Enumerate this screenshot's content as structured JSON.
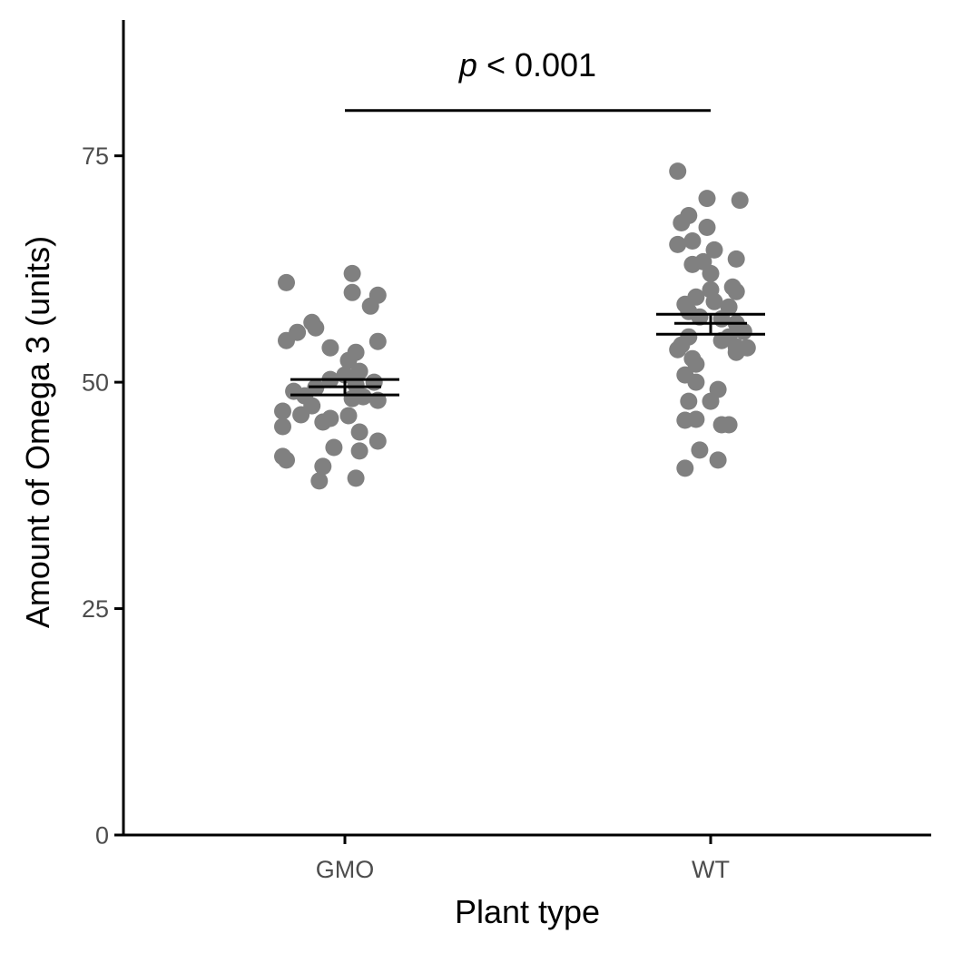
{
  "chart_data": {
    "type": "scatter",
    "title": "",
    "xlabel": "Plant type",
    "ylabel": "Amount of Omega 3 (units)",
    "categories": [
      "GMO",
      "WT"
    ],
    "ylim": [
      0,
      90
    ],
    "yticks": [
      "0",
      "25",
      "50",
      "75"
    ],
    "grid": false,
    "legend": "none",
    "point_color": "#808080",
    "series": [
      {
        "category": "GMO",
        "mean": 49.5,
        "se_low": 48.6,
        "se_high": 50.3,
        "points": [
          {
            "jitter": 0.02,
            "y": 62.0
          },
          {
            "jitter": -0.16,
            "y": 61.0
          },
          {
            "jitter": 0.09,
            "y": 59.6
          },
          {
            "jitter": 0.02,
            "y": 59.9
          },
          {
            "jitter": 0.07,
            "y": 58.4
          },
          {
            "jitter": -0.09,
            "y": 56.6
          },
          {
            "jitter": -0.08,
            "y": 56.0
          },
          {
            "jitter": -0.13,
            "y": 55.5
          },
          {
            "jitter": -0.16,
            "y": 54.6
          },
          {
            "jitter": 0.09,
            "y": 54.5
          },
          {
            "jitter": -0.04,
            "y": 53.8
          },
          {
            "jitter": 0.03,
            "y": 53.3
          },
          {
            "jitter": 0.01,
            "y": 52.4
          },
          {
            "jitter": 0.04,
            "y": 51.2
          },
          {
            "jitter": 0.0,
            "y": 50.8
          },
          {
            "jitter": -0.04,
            "y": 50.3
          },
          {
            "jitter": 0.08,
            "y": 50.0
          },
          {
            "jitter": 0.03,
            "y": 49.7
          },
          {
            "jitter": -0.08,
            "y": 49.4
          },
          {
            "jitter": -0.14,
            "y": 49.0
          },
          {
            "jitter": -0.11,
            "y": 48.5
          },
          {
            "jitter": 0.05,
            "y": 48.4
          },
          {
            "jitter": 0.02,
            "y": 48.2
          },
          {
            "jitter": 0.09,
            "y": 48.0
          },
          {
            "jitter": -0.09,
            "y": 47.4
          },
          {
            "jitter": -0.17,
            "y": 46.8
          },
          {
            "jitter": -0.12,
            "y": 46.4
          },
          {
            "jitter": -0.04,
            "y": 46.0
          },
          {
            "jitter": 0.01,
            "y": 46.3
          },
          {
            "jitter": -0.06,
            "y": 45.6
          },
          {
            "jitter": -0.17,
            "y": 45.1
          },
          {
            "jitter": 0.04,
            "y": 44.5
          },
          {
            "jitter": 0.09,
            "y": 43.5
          },
          {
            "jitter": -0.03,
            "y": 42.8
          },
          {
            "jitter": 0.04,
            "y": 42.4
          },
          {
            "jitter": -0.17,
            "y": 41.8
          },
          {
            "jitter": -0.16,
            "y": 41.4
          },
          {
            "jitter": -0.06,
            "y": 40.7
          },
          {
            "jitter": 0.03,
            "y": 39.4
          },
          {
            "jitter": -0.07,
            "y": 39.1
          }
        ]
      },
      {
        "category": "WT",
        "mean": 56.5,
        "se_low": 55.3,
        "se_high": 57.5,
        "points": [
          {
            "jitter": -0.09,
            "y": 73.3
          },
          {
            "jitter": -0.01,
            "y": 70.3
          },
          {
            "jitter": 0.08,
            "y": 70.1
          },
          {
            "jitter": -0.06,
            "y": 68.4
          },
          {
            "jitter": -0.08,
            "y": 67.6
          },
          {
            "jitter": -0.01,
            "y": 67.1
          },
          {
            "jitter": -0.05,
            "y": 65.6
          },
          {
            "jitter": -0.09,
            "y": 65.2
          },
          {
            "jitter": 0.01,
            "y": 64.6
          },
          {
            "jitter": 0.07,
            "y": 63.6
          },
          {
            "jitter": -0.02,
            "y": 63.3
          },
          {
            "jitter": -0.05,
            "y": 63.0
          },
          {
            "jitter": 0.0,
            "y": 62.0
          },
          {
            "jitter": 0.06,
            "y": 60.5
          },
          {
            "jitter": 0.0,
            "y": 60.2
          },
          {
            "jitter": 0.07,
            "y": 60.0
          },
          {
            "jitter": -0.04,
            "y": 59.4
          },
          {
            "jitter": 0.01,
            "y": 58.9
          },
          {
            "jitter": -0.07,
            "y": 58.6
          },
          {
            "jitter": 0.05,
            "y": 58.3
          },
          {
            "jitter": -0.06,
            "y": 57.8
          },
          {
            "jitter": -0.03,
            "y": 57.2
          },
          {
            "jitter": 0.03,
            "y": 57.0
          },
          {
            "jitter": 0.07,
            "y": 56.5
          },
          {
            "jitter": 0.09,
            "y": 55.6
          },
          {
            "jitter": -0.06,
            "y": 55.0
          },
          {
            "jitter": 0.05,
            "y": 55.0
          },
          {
            "jitter": 0.03,
            "y": 54.6
          },
          {
            "jitter": -0.08,
            "y": 54.1
          },
          {
            "jitter": 0.07,
            "y": 53.9
          },
          {
            "jitter": 0.1,
            "y": 53.8
          },
          {
            "jitter": -0.09,
            "y": 53.6
          },
          {
            "jitter": 0.07,
            "y": 53.3
          },
          {
            "jitter": -0.05,
            "y": 52.6
          },
          {
            "jitter": -0.04,
            "y": 52.0
          },
          {
            "jitter": -0.07,
            "y": 50.8
          },
          {
            "jitter": -0.04,
            "y": 50.0
          },
          {
            "jitter": 0.02,
            "y": 49.2
          },
          {
            "jitter": -0.06,
            "y": 47.9
          },
          {
            "jitter": 0.0,
            "y": 47.9
          },
          {
            "jitter": -0.07,
            "y": 45.8
          },
          {
            "jitter": -0.04,
            "y": 45.9
          },
          {
            "jitter": 0.03,
            "y": 45.3
          },
          {
            "jitter": 0.05,
            "y": 45.3
          },
          {
            "jitter": -0.03,
            "y": 42.5
          },
          {
            "jitter": 0.02,
            "y": 41.4
          },
          {
            "jitter": -0.07,
            "y": 40.5
          }
        ]
      }
    ],
    "annotation": {
      "p_symbol": "p",
      "text": " < 0.001",
      "y": 80
    }
  }
}
